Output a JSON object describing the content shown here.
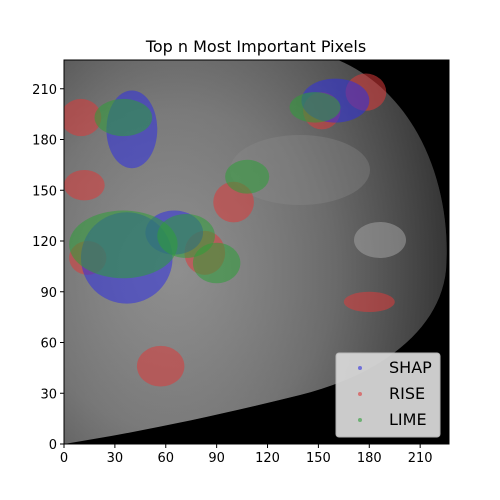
{
  "chart_data": {
    "type": "scatter",
    "title": "Top n Most Important Pixels",
    "xlabel": "",
    "ylabel": "",
    "xlim": [
      0,
      227
    ],
    "ylim": [
      0,
      227
    ],
    "xticks": [
      0,
      30,
      60,
      90,
      120,
      150,
      180,
      210
    ],
    "yticks": [
      0,
      30,
      60,
      90,
      120,
      150,
      180,
      210
    ],
    "grid": false,
    "legend_position": "bottom-right",
    "background": "grayscale mammogram image",
    "series": [
      {
        "name": "SHAP",
        "color": "#3030e0",
        "regions": [
          {
            "cx": 40,
            "cy": 186,
            "rx": 15,
            "ry": 23
          },
          {
            "cx": 37,
            "cy": 110,
            "rx": 27,
            "ry": 27
          },
          {
            "cx": 65,
            "cy": 125,
            "rx": 17,
            "ry": 13
          },
          {
            "cx": 160,
            "cy": 203,
            "rx": 20,
            "ry": 13
          }
        ]
      },
      {
        "name": "RISE",
        "color": "#dd3a3a",
        "regions": [
          {
            "cx": 10,
            "cy": 193,
            "rx": 12,
            "ry": 11
          },
          {
            "cx": 12,
            "cy": 153,
            "rx": 12,
            "ry": 9
          },
          {
            "cx": 14,
            "cy": 110,
            "rx": 11,
            "ry": 10
          },
          {
            "cx": 100,
            "cy": 143,
            "rx": 12,
            "ry": 12
          },
          {
            "cx": 83,
            "cy": 113,
            "rx": 12,
            "ry": 13
          },
          {
            "cx": 57,
            "cy": 46,
            "rx": 14,
            "ry": 12
          },
          {
            "cx": 152,
            "cy": 197,
            "rx": 11,
            "ry": 11
          },
          {
            "cx": 178,
            "cy": 208,
            "rx": 12,
            "ry": 11
          },
          {
            "cx": 180,
            "cy": 84,
            "rx": 15,
            "ry": 6
          }
        ]
      },
      {
        "name": "LIME",
        "color": "#2e9e38",
        "regions": [
          {
            "cx": 35,
            "cy": 193,
            "rx": 17,
            "ry": 11
          },
          {
            "cx": 35,
            "cy": 118,
            "rx": 32,
            "ry": 20
          },
          {
            "cx": 72,
            "cy": 123,
            "rx": 17,
            "ry": 13
          },
          {
            "cx": 90,
            "cy": 107,
            "rx": 14,
            "ry": 12
          },
          {
            "cx": 108,
            "cy": 158,
            "rx": 13,
            "ry": 10
          },
          {
            "cx": 148,
            "cy": 199,
            "rx": 15,
            "ry": 9
          }
        ]
      }
    ]
  }
}
